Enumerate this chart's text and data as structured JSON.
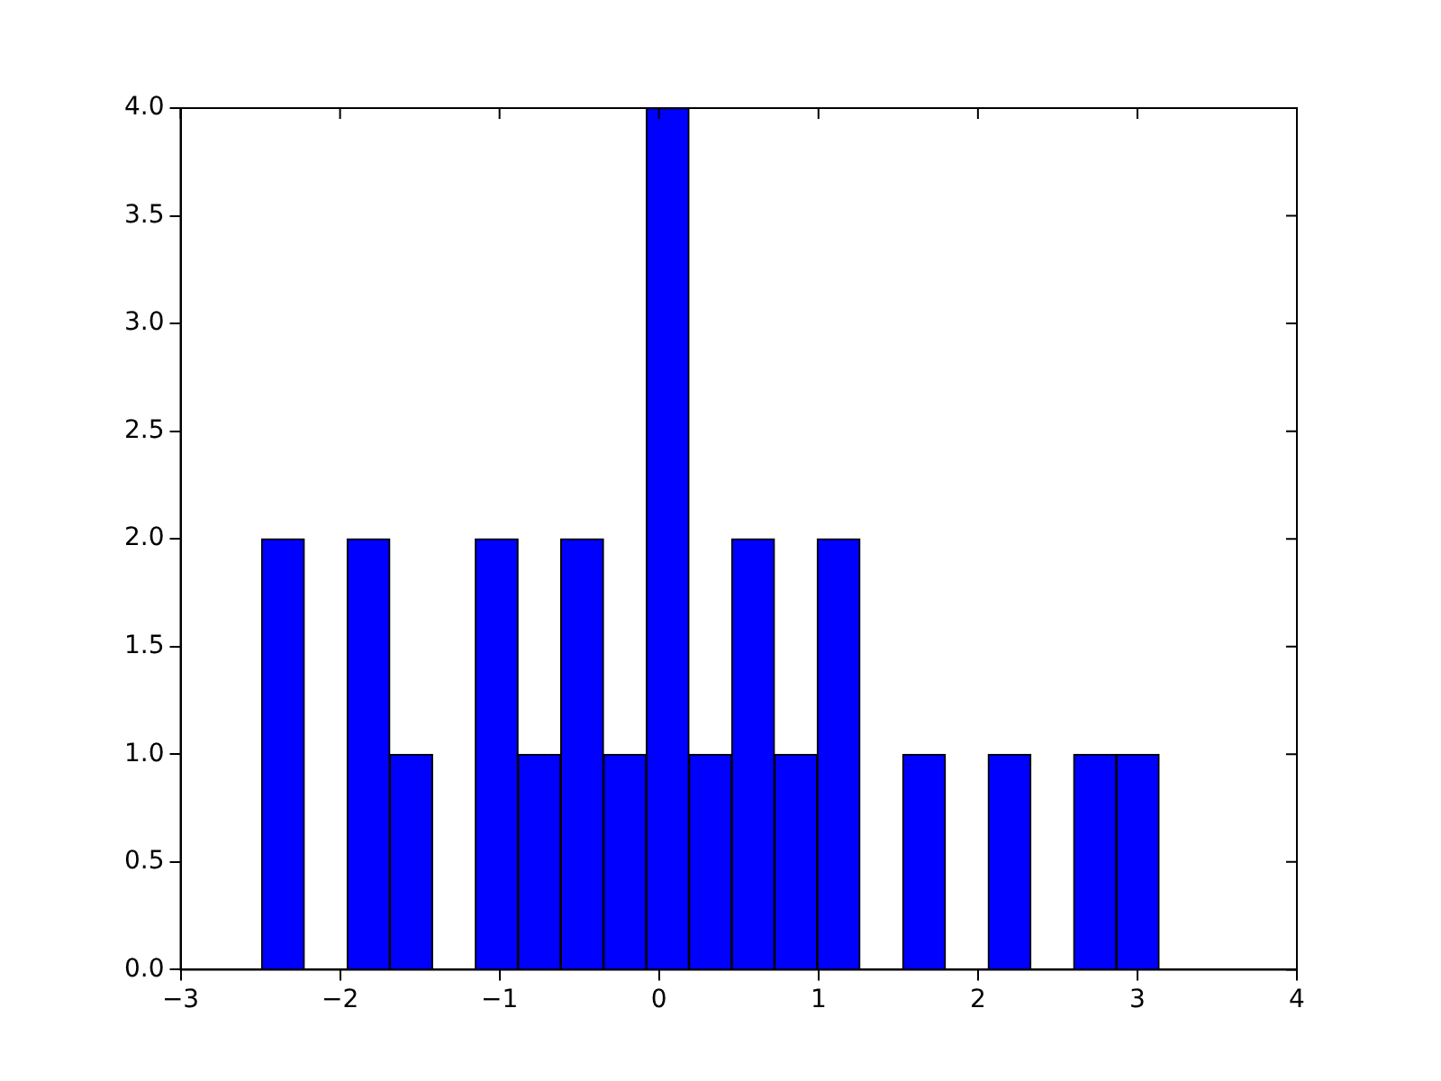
{
  "chart_data": {
    "type": "histogram",
    "bins": [
      -2.492,
      -2.224,
      -1.956,
      -1.688,
      -1.42,
      -1.152,
      -0.884,
      -0.616,
      -0.348,
      -0.08,
      0.188,
      0.456,
      0.724,
      0.992,
      1.26,
      1.528,
      1.796,
      2.064,
      2.332,
      2.6,
      2.868,
      3.136
    ],
    "values": [
      2,
      0,
      2,
      1,
      0,
      2,
      1,
      2,
      1,
      4,
      1,
      2,
      1,
      2,
      0,
      1,
      0,
      1,
      0,
      1,
      1
    ],
    "color": "#0000ff",
    "xlim": [
      -3,
      4
    ],
    "xticks": [
      {
        "value": -3,
        "label": "−3"
      },
      {
        "value": -2,
        "label": "−2"
      },
      {
        "value": -1,
        "label": "−1"
      },
      0,
      1,
      2,
      3,
      4
    ],
    "ylim": [
      0,
      4
    ],
    "yticks": [
      {
        "value": 0,
        "label": "0.0"
      },
      {
        "value": 0.5,
        "label": "0.5"
      },
      {
        "value": 1,
        "label": "1.0"
      },
      {
        "value": 1.5,
        "label": "1.5"
      },
      {
        "value": 2,
        "label": "2.0"
      },
      {
        "value": 2.5,
        "label": "2.5"
      },
      {
        "value": 3,
        "label": "3.0"
      },
      {
        "value": 3.5,
        "label": "3.5"
      },
      {
        "value": 4,
        "label": "4.0"
      }
    ],
    "grid": false,
    "legend": false
  }
}
